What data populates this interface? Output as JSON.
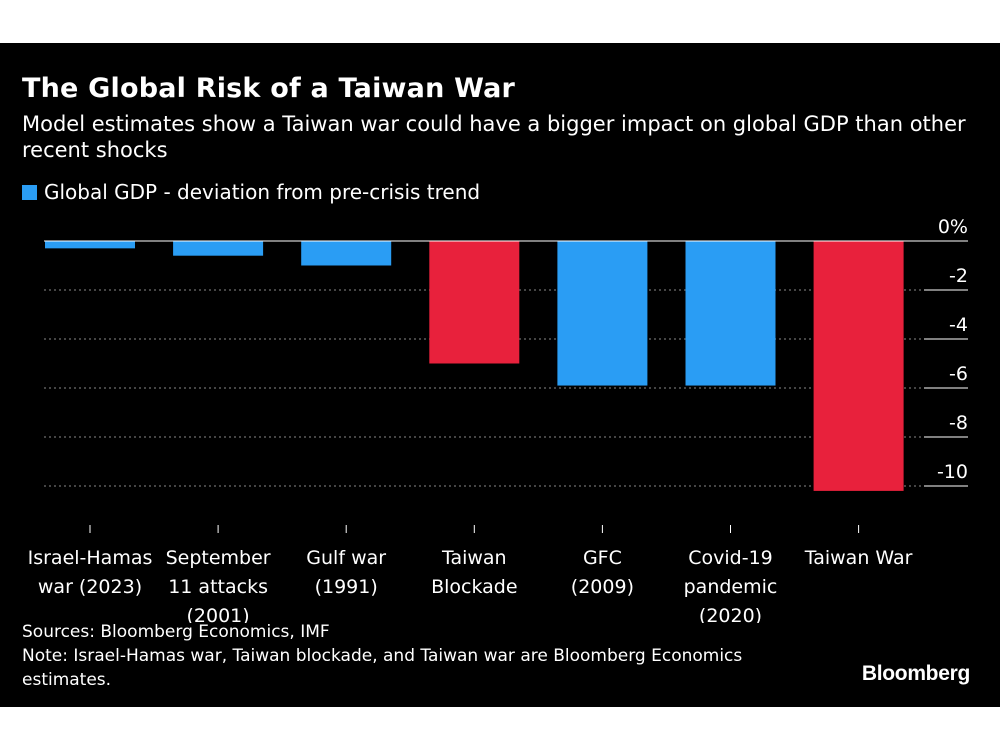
{
  "header": {
    "title": "The Global Risk of a Taiwan War",
    "subtitle": "Model estimates show a Taiwan war could have a bigger impact on global GDP than other recent shocks"
  },
  "chart_data": {
    "type": "bar",
    "title": "The Global Risk of a Taiwan War",
    "legend": [
      {
        "name": "Global GDP - deviation from pre-crisis trend",
        "color": "#2a9df4"
      }
    ],
    "legend_position": "top-left",
    "categories": [
      [
        "Israel-Hamas",
        "war (2023)"
      ],
      [
        "September",
        "11 attacks",
        "(2001)"
      ],
      [
        "Gulf war",
        "(1991)"
      ],
      [
        "Taiwan",
        "Blockade"
      ],
      [
        "GFC",
        "(2009)"
      ],
      [
        "Covid-19",
        "pandemic",
        "(2020)"
      ],
      [
        "Taiwan War"
      ]
    ],
    "values": [
      -0.3,
      -0.6,
      -1.0,
      -5.0,
      -5.9,
      -5.9,
      -10.2
    ],
    "colors": [
      "#2a9df4",
      "#2a9df4",
      "#2a9df4",
      "#e8213c",
      "#2a9df4",
      "#2a9df4",
      "#e8213c"
    ],
    "y_ticks": [
      0,
      -2,
      -4,
      -6,
      -8,
      -10
    ],
    "y_tick_labels": [
      "0%",
      "-2",
      "-4",
      "-6",
      "-8",
      "-10"
    ],
    "ylim": [
      -10.2,
      0
    ],
    "grid": true,
    "xlabel": "",
    "ylabel": ""
  },
  "footer": {
    "sources": "Sources: Bloomberg Economics, IMF",
    "note": "Note: Israel-Hamas war, Taiwan blockade, and Taiwan war are Bloomberg Economics estimates.",
    "brand": "Bloomberg"
  }
}
